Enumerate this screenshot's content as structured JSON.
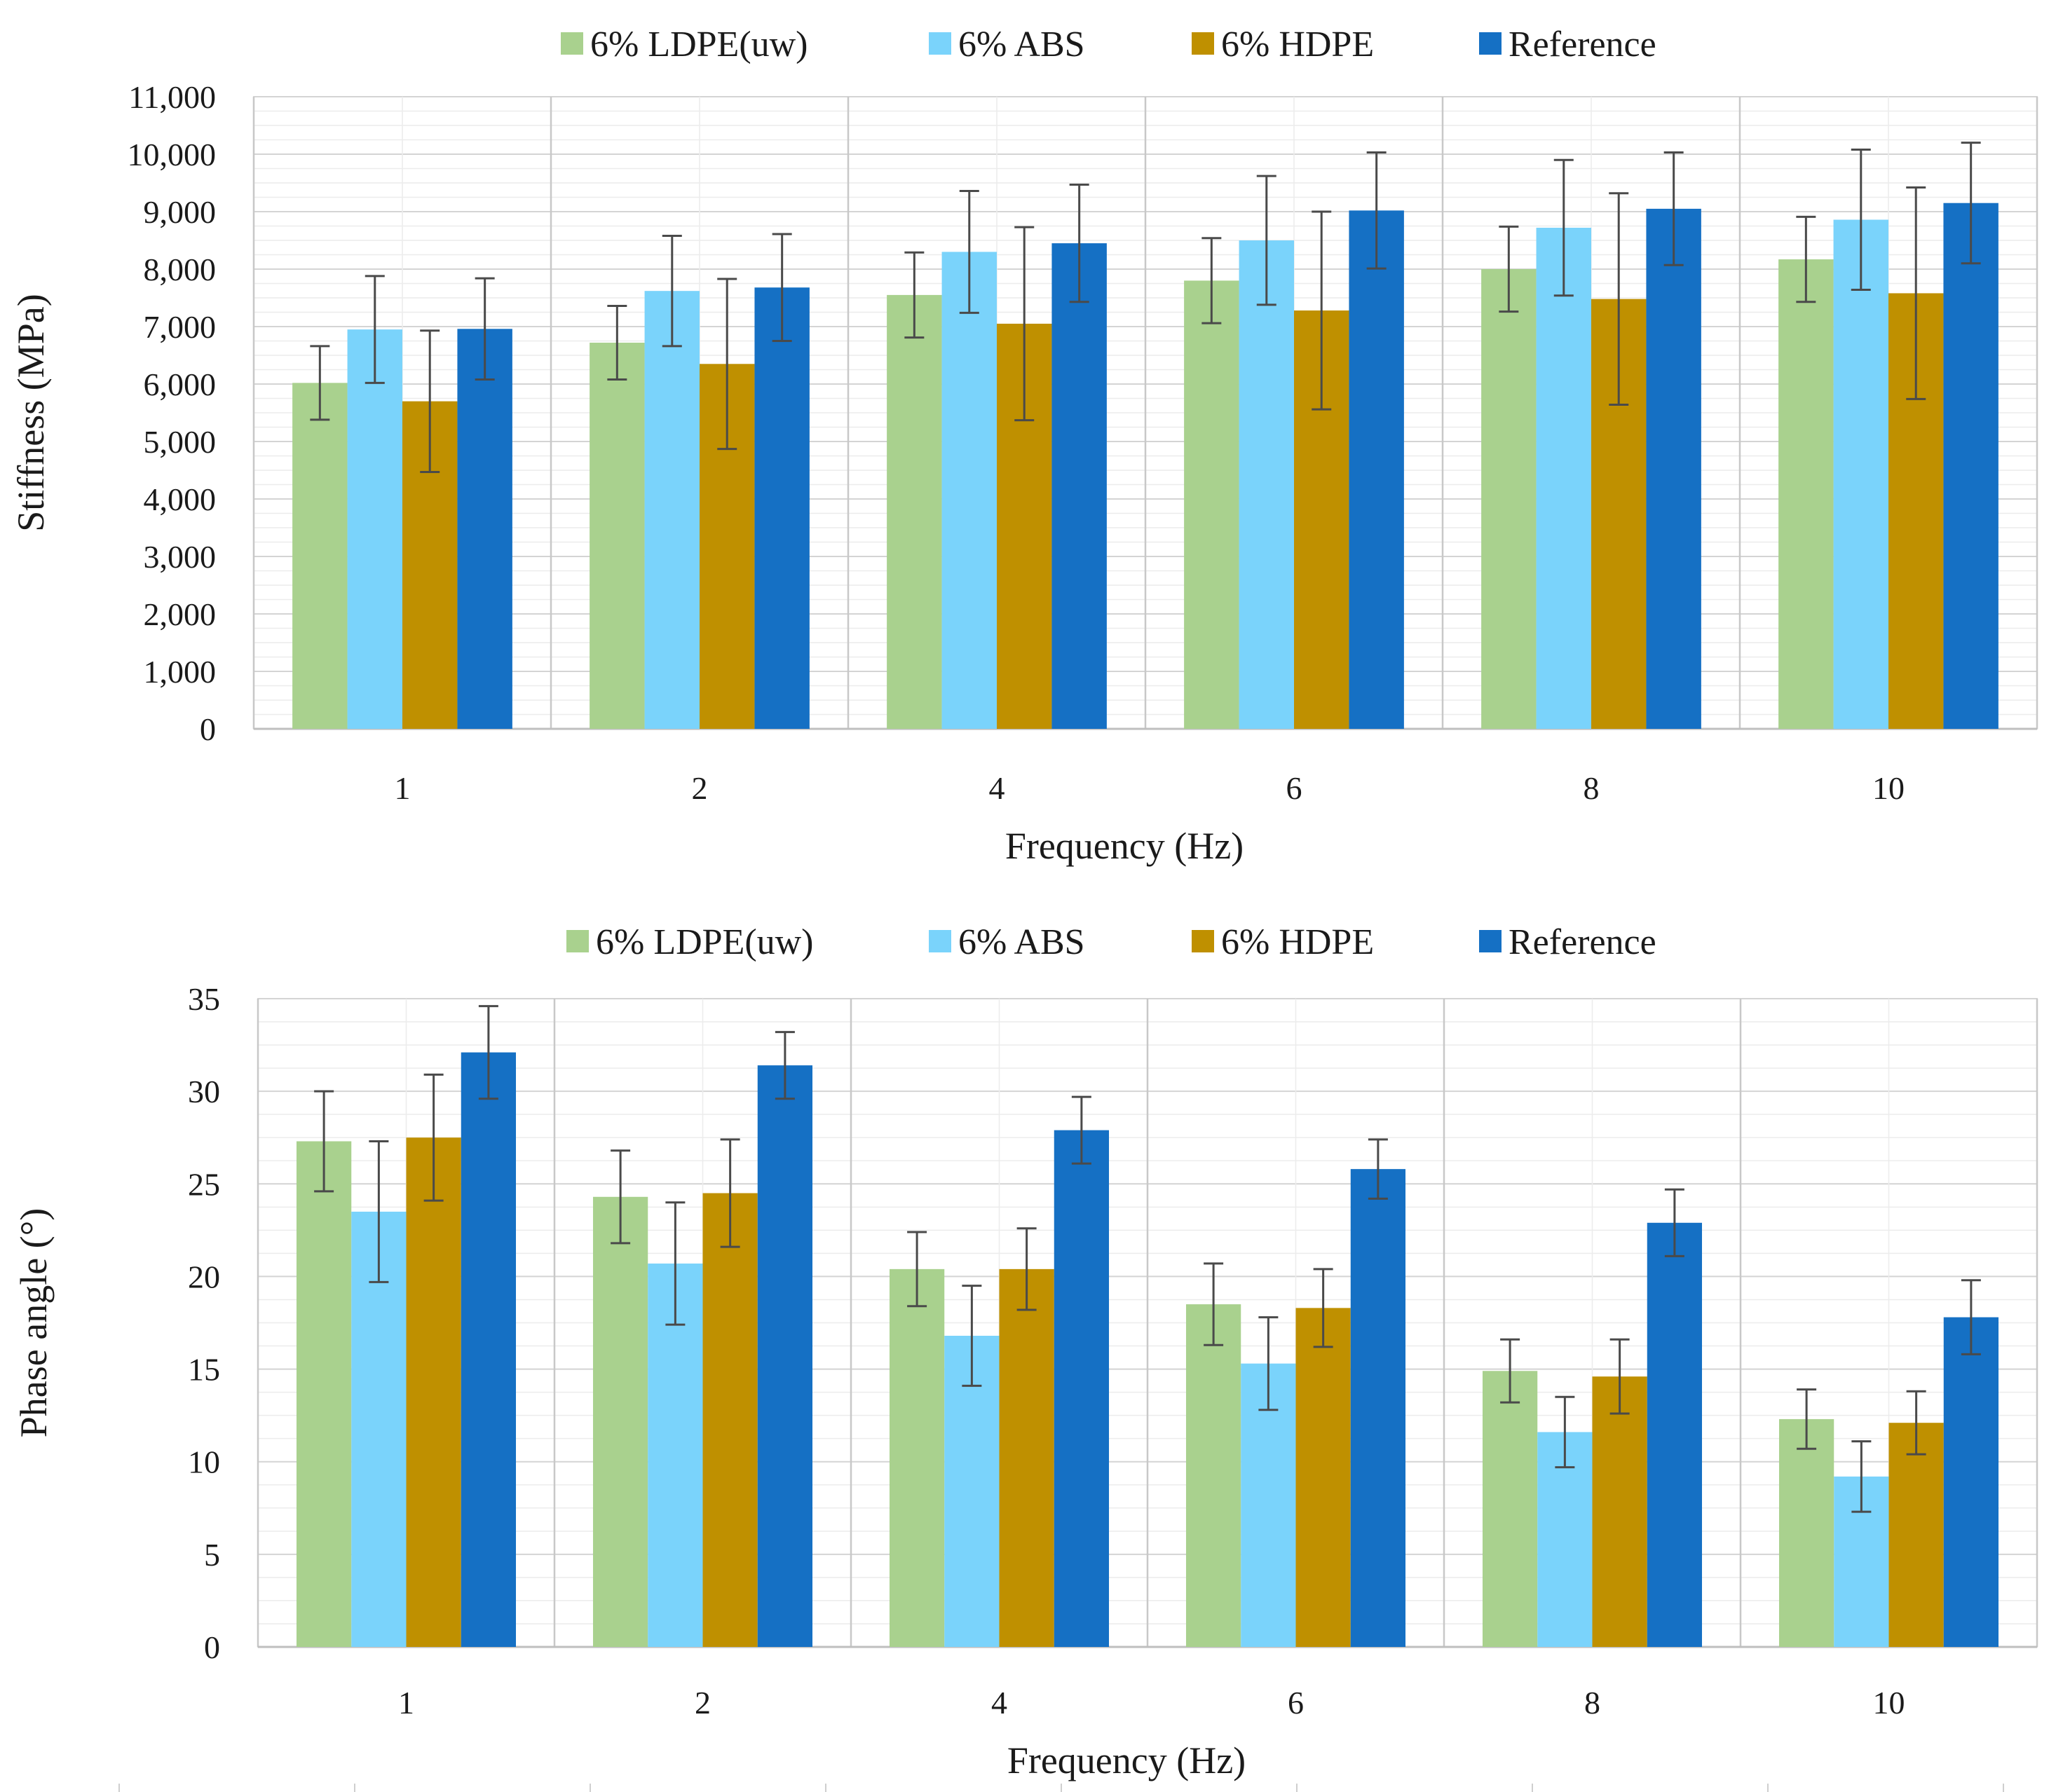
{
  "chart_data": [
    {
      "type": "bar",
      "title": "",
      "xlabel": "Frequency (Hz)",
      "ylabel": "Stiffness (MPa)",
      "ylim": [
        0,
        11000
      ],
      "ytick_step": 1000,
      "ytick_labels": [
        "0",
        "1,000",
        "2,000",
        "3,000",
        "4,000",
        "5,000",
        "6,000",
        "7,000",
        "8,000",
        "9,000",
        "10,000",
        "11,000"
      ],
      "categories": [
        "1",
        "2",
        "4",
        "6",
        "8",
        "10"
      ],
      "legend_position": "top",
      "grid": true,
      "series": [
        {
          "name": "6% LDPE(uw)",
          "color": "#a9d18e",
          "values": [
            6020,
            6720,
            7550,
            7800,
            8000,
            8170
          ],
          "errors": [
            640,
            640,
            740,
            740,
            740,
            740
          ]
        },
        {
          "name": "6% ABS",
          "color": "#7ad3fb",
          "values": [
            6950,
            7620,
            8300,
            8500,
            8720,
            8860
          ],
          "errors": [
            930,
            960,
            1060,
            1120,
            1180,
            1220
          ]
        },
        {
          "name": "6% HDPE",
          "color": "#bf9000",
          "values": [
            5700,
            6350,
            7050,
            7280,
            7480,
            7580
          ],
          "errors": [
            1230,
            1480,
            1680,
            1720,
            1840,
            1840
          ]
        },
        {
          "name": "Reference",
          "color": "#1570c4",
          "values": [
            6960,
            7680,
            8450,
            9020,
            9050,
            9150
          ],
          "errors": [
            880,
            930,
            1020,
            1010,
            980,
            1050
          ]
        }
      ]
    },
    {
      "type": "bar",
      "title": "",
      "xlabel": "Frequency (Hz)",
      "ylabel": "Phase angle (°)",
      "ylim": [
        0,
        35
      ],
      "ytick_step": 5,
      "ytick_labels": [
        "0",
        "5",
        "10",
        "15",
        "20",
        "25",
        "30",
        "35"
      ],
      "categories": [
        "1",
        "2",
        "4",
        "6",
        "8",
        "10"
      ],
      "legend_position": "top",
      "grid": true,
      "series": [
        {
          "name": "6% LDPE(uw)",
          "color": "#a9d18e",
          "values": [
            27.3,
            24.3,
            20.4,
            18.5,
            14.9,
            12.3
          ],
          "errors": [
            2.7,
            2.5,
            2.0,
            2.2,
            1.7,
            1.6
          ]
        },
        {
          "name": "6% ABS",
          "color": "#7ad3fb",
          "values": [
            23.5,
            20.7,
            16.8,
            15.3,
            11.6,
            9.2
          ],
          "errors": [
            3.8,
            3.3,
            2.7,
            2.5,
            1.9,
            1.9
          ]
        },
        {
          "name": "6% HDPE",
          "color": "#bf9000",
          "values": [
            27.5,
            24.5,
            20.4,
            18.3,
            14.6,
            12.1
          ],
          "errors": [
            3.4,
            2.9,
            2.2,
            2.1,
            2.0,
            1.7
          ]
        },
        {
          "name": "Reference",
          "color": "#1570c4",
          "values": [
            32.1,
            31.4,
            27.9,
            25.8,
            22.9,
            17.8
          ],
          "errors": [
            2.5,
            1.8,
            1.8,
            1.6,
            1.8,
            2.0
          ]
        }
      ]
    }
  ]
}
